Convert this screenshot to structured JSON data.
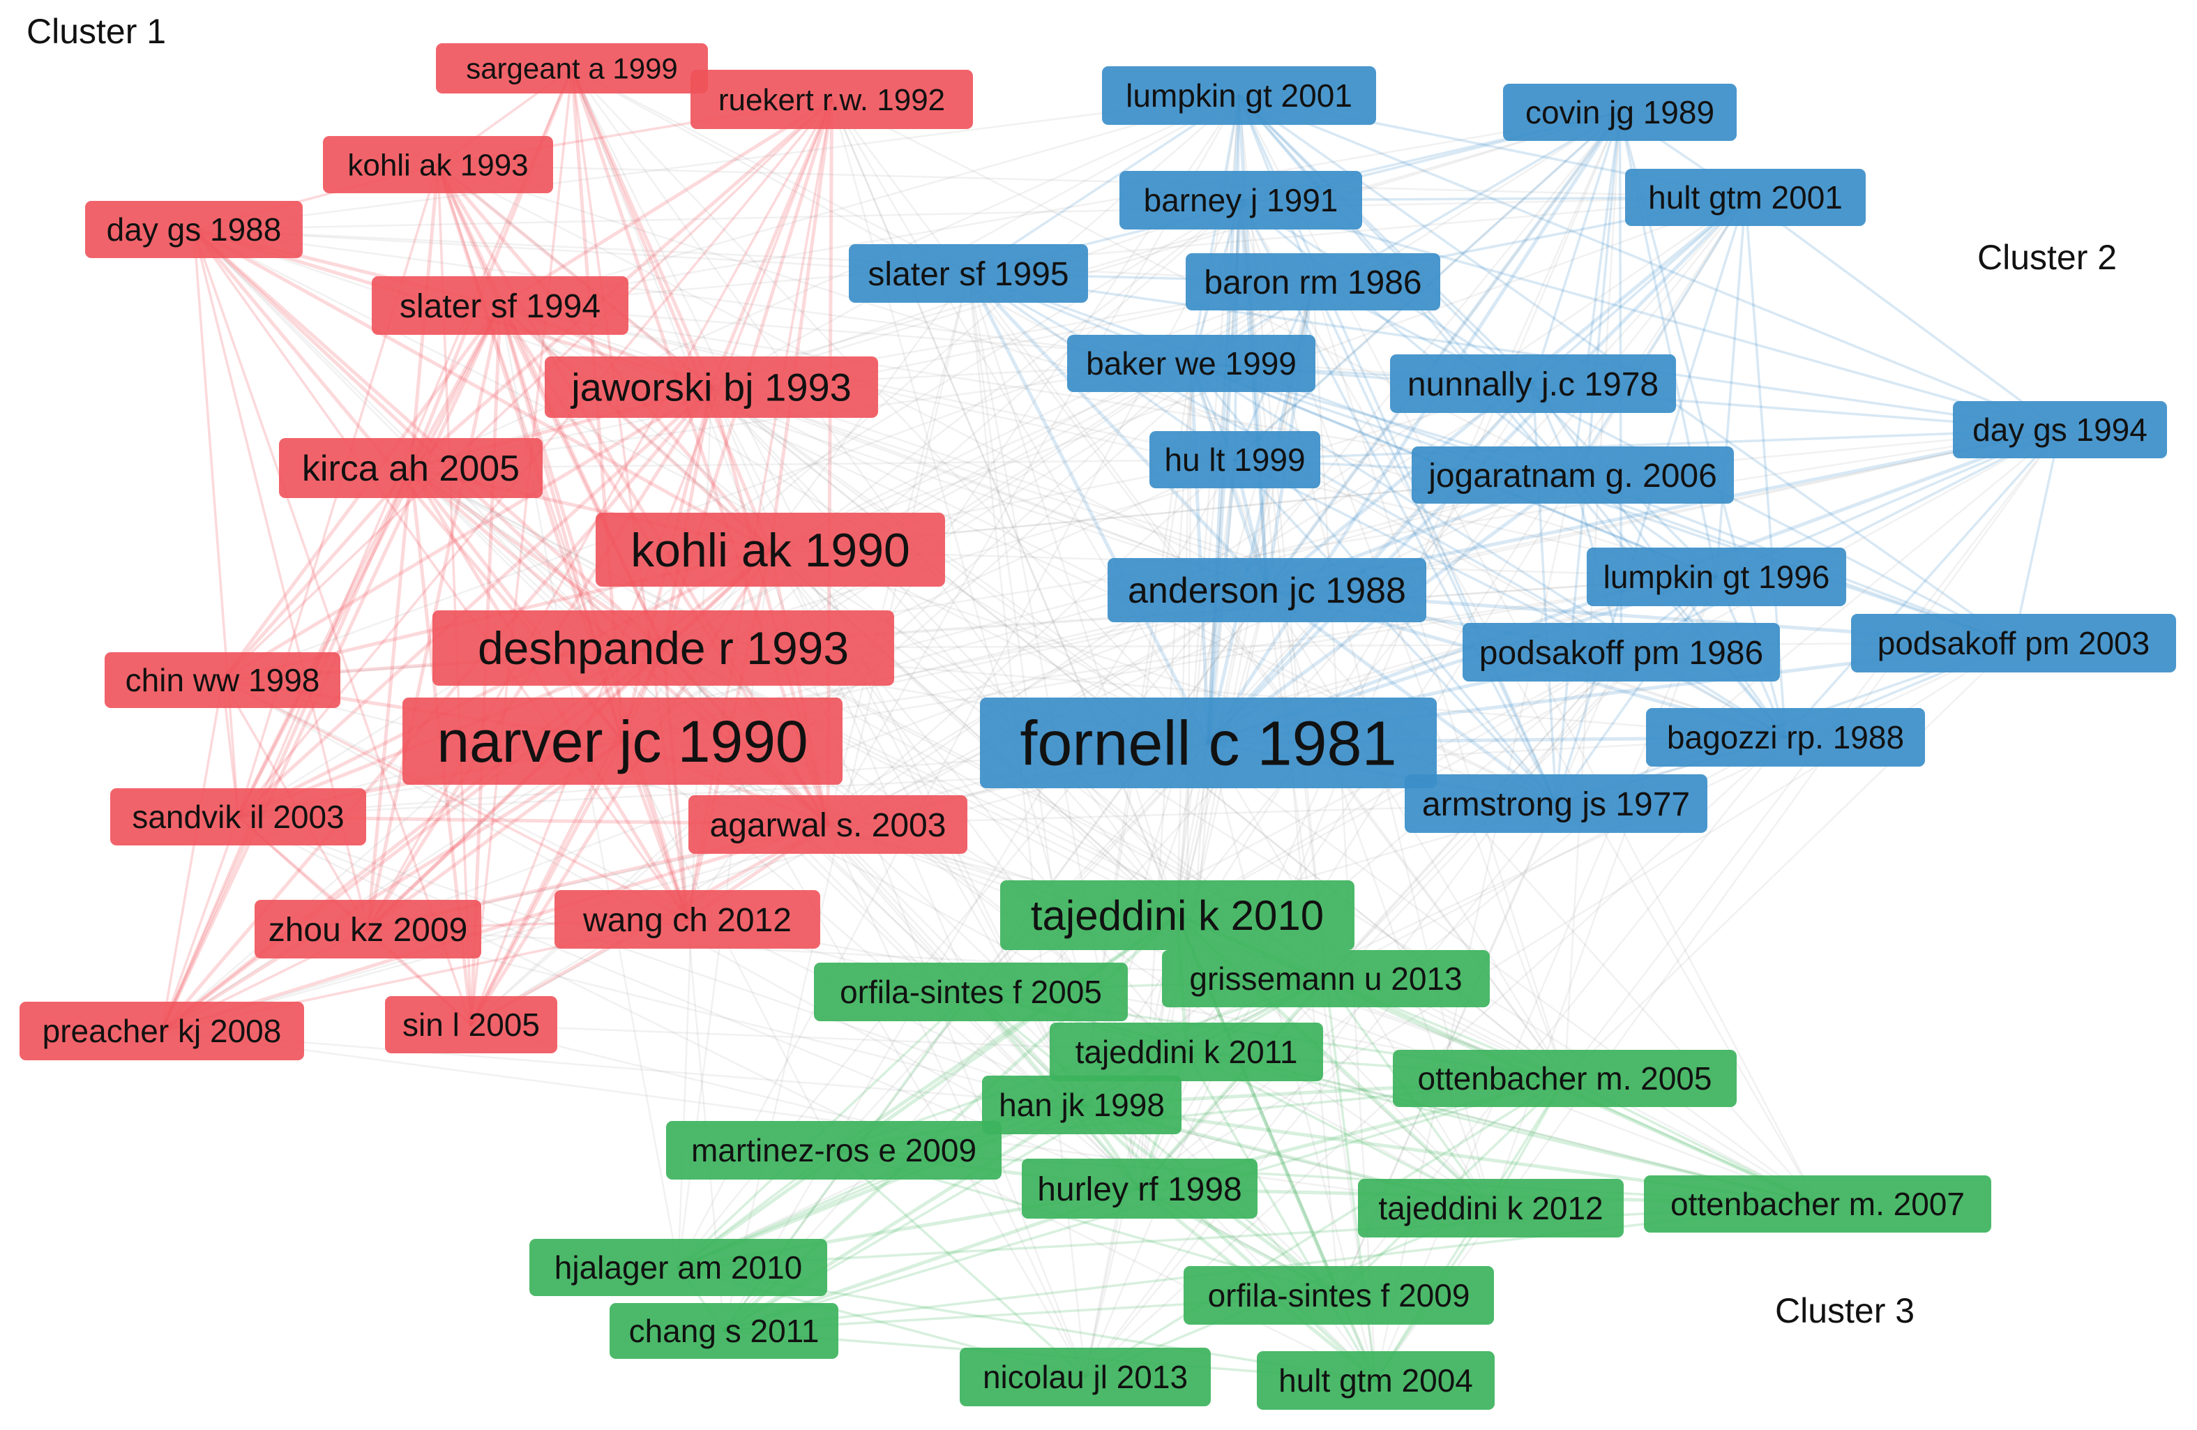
{
  "cluster_labels": [
    {
      "id": "c1",
      "text": "Cluster 1"
    },
    {
      "id": "c2",
      "text": "Cluster 2"
    },
    {
      "id": "c3",
      "text": "Cluster 3"
    }
  ],
  "cluster_colors": {
    "red": "#f0525a",
    "blue": "#3b8ec9",
    "green": "#3cb35c",
    "edge_gray": "#9a9a9a"
  },
  "nodes": [
    {
      "id": "sargeant",
      "label": "sargeant a 1999",
      "cluster": "red"
    },
    {
      "id": "ruekert",
      "label": "ruekert r.w. 1992",
      "cluster": "red"
    },
    {
      "id": "kohli93",
      "label": "kohli ak 1993",
      "cluster": "red"
    },
    {
      "id": "daygs88",
      "label": "day gs 1988",
      "cluster": "red"
    },
    {
      "id": "slater94",
      "label": "slater sf 1994",
      "cluster": "red"
    },
    {
      "id": "jaworski",
      "label": "jaworski bj 1993",
      "cluster": "red"
    },
    {
      "id": "kirca",
      "label": "kirca ah 2005",
      "cluster": "red"
    },
    {
      "id": "kohli90",
      "label": "kohli ak 1990",
      "cluster": "red"
    },
    {
      "id": "deshpande",
      "label": "deshpande r 1993",
      "cluster": "red"
    },
    {
      "id": "chin",
      "label": "chin ww 1998",
      "cluster": "red"
    },
    {
      "id": "narver",
      "label": "narver jc 1990",
      "cluster": "red"
    },
    {
      "id": "sandvik",
      "label": "sandvik il 2003",
      "cluster": "red"
    },
    {
      "id": "agarwal",
      "label": "agarwal s. 2003",
      "cluster": "red"
    },
    {
      "id": "zhou",
      "label": "zhou kz 2009",
      "cluster": "red"
    },
    {
      "id": "wang",
      "label": "wang ch 2012",
      "cluster": "red"
    },
    {
      "id": "preacher",
      "label": "preacher kj 2008",
      "cluster": "red"
    },
    {
      "id": "sin",
      "label": "sin l 2005",
      "cluster": "red"
    },
    {
      "id": "lumpkin01",
      "label": "lumpkin gt 2001",
      "cluster": "blue"
    },
    {
      "id": "covin",
      "label": "covin jg 1989",
      "cluster": "blue"
    },
    {
      "id": "barney",
      "label": "barney j 1991",
      "cluster": "blue"
    },
    {
      "id": "hult01",
      "label": "hult gtm 2001",
      "cluster": "blue"
    },
    {
      "id": "slater95",
      "label": "slater sf 1995",
      "cluster": "blue"
    },
    {
      "id": "baron",
      "label": "baron rm 1986",
      "cluster": "blue"
    },
    {
      "id": "baker",
      "label": "baker we 1999",
      "cluster": "blue"
    },
    {
      "id": "nunnally",
      "label": "nunnally j.c 1978",
      "cluster": "blue"
    },
    {
      "id": "daygs94",
      "label": "day gs 1994",
      "cluster": "blue"
    },
    {
      "id": "hu",
      "label": "hu lt 1999",
      "cluster": "blue"
    },
    {
      "id": "jogaratnam",
      "label": "jogaratnam g. 2006",
      "cluster": "blue"
    },
    {
      "id": "anderson",
      "label": "anderson jc 1988",
      "cluster": "blue"
    },
    {
      "id": "lumpkin96",
      "label": "lumpkin gt 1996",
      "cluster": "blue"
    },
    {
      "id": "podsakoff86",
      "label": "podsakoff pm 1986",
      "cluster": "blue"
    },
    {
      "id": "podsakoff03",
      "label": "podsakoff pm 2003",
      "cluster": "blue"
    },
    {
      "id": "fornell",
      "label": "fornell c 1981",
      "cluster": "blue"
    },
    {
      "id": "bagozzi",
      "label": "bagozzi rp. 1988",
      "cluster": "blue"
    },
    {
      "id": "armstrong",
      "label": "armstrong js 1977",
      "cluster": "blue"
    },
    {
      "id": "tajeddini10",
      "label": "tajeddini k 2010",
      "cluster": "green"
    },
    {
      "id": "orfila05",
      "label": "orfila-sintes f 2005",
      "cluster": "green"
    },
    {
      "id": "grissemann",
      "label": "grissemann u 2013",
      "cluster": "green"
    },
    {
      "id": "tajeddini11",
      "label": "tajeddini k 2011",
      "cluster": "green"
    },
    {
      "id": "ottenbacher05",
      "label": "ottenbacher m. 2005",
      "cluster": "green"
    },
    {
      "id": "han",
      "label": "han jk 1998",
      "cluster": "green"
    },
    {
      "id": "martinez",
      "label": "martinez-ros e 2009",
      "cluster": "green"
    },
    {
      "id": "hurley",
      "label": "hurley rf 1998",
      "cluster": "green"
    },
    {
      "id": "tajeddini12",
      "label": "tajeddini k 2012",
      "cluster": "green"
    },
    {
      "id": "ottenbacher07",
      "label": "ottenbacher m. 2007",
      "cluster": "green"
    },
    {
      "id": "hjalager",
      "label": "hjalager am 2010",
      "cluster": "green"
    },
    {
      "id": "orfila09",
      "label": "orfila-sintes f 2009",
      "cluster": "green"
    },
    {
      "id": "chang",
      "label": "chang s 2011",
      "cluster": "green"
    },
    {
      "id": "nicolau",
      "label": "nicolau jl 2013",
      "cluster": "green"
    },
    {
      "id": "hult04",
      "label": "hult gtm 2004",
      "cluster": "green"
    }
  ]
}
